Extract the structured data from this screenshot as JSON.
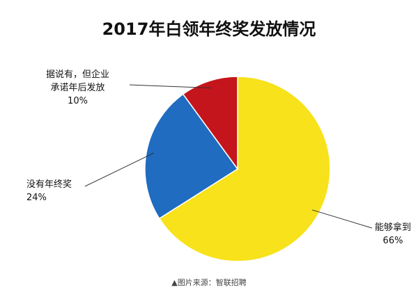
{
  "chart_data": {
    "type": "pie",
    "title": "2017年白领年终奖发放情况",
    "slices": [
      {
        "label": "能够拿到",
        "value": 66,
        "value_label": "66%",
        "color": "#f7e21b"
      },
      {
        "label": "没有年终奖",
        "value": 24,
        "value_label": "24%",
        "color": "#1f6cc0"
      },
      {
        "label": "据说有，但企业承诺年后发放",
        "label_lines": [
          "据说有，但企业",
          "承诺年后发放"
        ],
        "value": 10,
        "value_label": "10%",
        "color": "#c4151c"
      }
    ],
    "start_angle_deg": 0,
    "direction": "clockwise",
    "legend": "none"
  },
  "source": "▲图片来源：智联招聘"
}
